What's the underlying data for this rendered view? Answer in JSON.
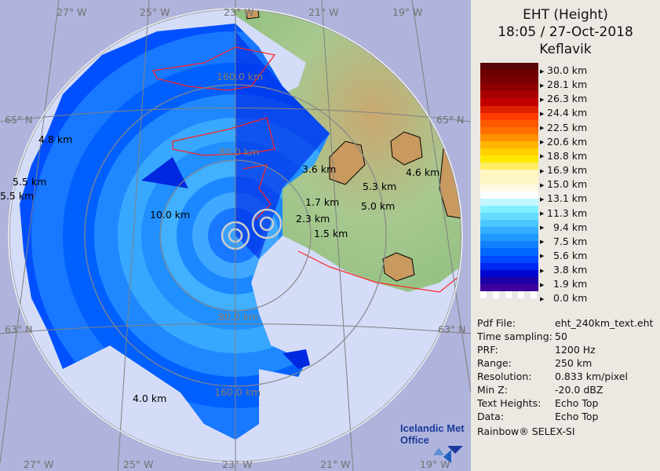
{
  "header": {
    "title_line1": "EHT (Height)",
    "title_line2": "18:05 / 27-Oct-2018",
    "title_line3": "Keflavik"
  },
  "legend": {
    "labels": [
      "30.0 km",
      "28.1 km",
      "26.3 km",
      "24.4 km",
      "22.5 km",
      "20.6 km",
      "18.8 km",
      "16.9 km",
      "15.0 km",
      "13.1 km",
      "11.3 km",
      "9.4 km",
      "7.5 km",
      "5.6 km",
      "3.8 km",
      "1.9 km",
      "0.0 km"
    ],
    "colors": [
      "#5a0606",
      "#6e0000",
      "#7c0000",
      "#900000",
      "#a80000",
      "#c00000",
      "#dc2000",
      "#ff3c00",
      "#ff5a00",
      "#ff7000",
      "#ff9000",
      "#ffb400",
      "#ffd000",
      "#ffe800",
      "#ffee60",
      "#fff6c0",
      "#fff6c8",
      "#fffae6",
      "#ffffff",
      "#c4f6ff",
      "#84f0ff",
      "#64dcff",
      "#4cc8ff",
      "#34b0ff",
      "#2098ff",
      "#1080ff",
      "#0068ff",
      "#0048ff",
      "#0028f0",
      "#0008d0",
      "#1c00a8",
      "#3c009c"
    ]
  },
  "info": [
    {
      "key": "Pdf File:",
      "value": "eht_240km_text.eht"
    },
    {
      "key": "Time sampling:",
      "value": "50"
    },
    {
      "key": "PRF:",
      "value": "1200 Hz"
    },
    {
      "key": "Range:",
      "value": "250 km"
    },
    {
      "key": "Resolution:",
      "value": "0.833 km/pixel"
    },
    {
      "key": "Min Z:",
      "value": "-20.0 dBZ"
    },
    {
      "key": "Text Heights:",
      "value": "Echo Top"
    },
    {
      "key": "Data:",
      "value": "Echo Top"
    }
  ],
  "footer": "Rainbow® SELEX-SI",
  "logo": {
    "line1": "Icelandic Met",
    "line2": "Office"
  },
  "map": {
    "lon_labels": [
      "27° W",
      "25° W",
      "23° W",
      "21° W",
      "19° W"
    ],
    "lat_labels": [
      "65° N",
      "63° N"
    ],
    "range_labels": [
      "160.0 km",
      "80.0 km",
      "80.0 km",
      "160.0 km"
    ],
    "echo_heights": [
      "4.8 km",
      "5.5 km",
      "5.5 km",
      "10.0 km",
      "3.6 km",
      "1.7 km",
      "2.3 km",
      "1.5 km",
      "5.3 km",
      "5.0 km",
      "4.6 km",
      "4.0 km"
    ],
    "colors": {
      "outside": "#b0b4dc",
      "inside": "#d4dcf8",
      "land": "#a8c890",
      "coast": "#ff2020"
    }
  }
}
